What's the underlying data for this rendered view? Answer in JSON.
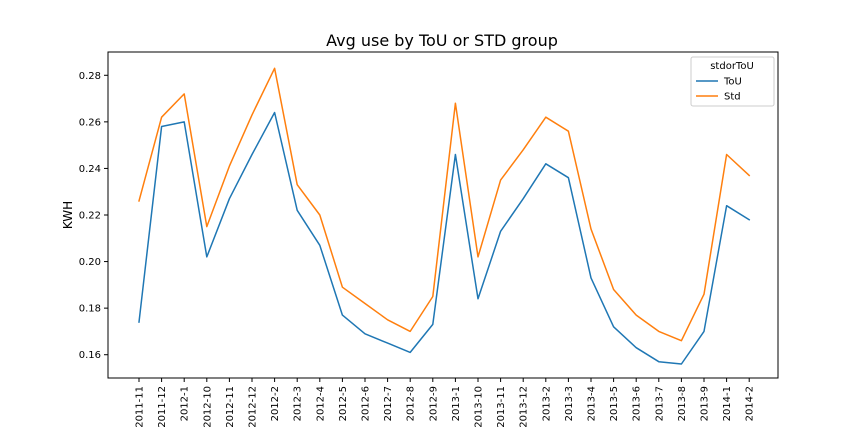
{
  "chart_data": {
    "type": "line",
    "title": "Avg use by ToU or STD group",
    "xlabel": "",
    "ylabel": "KWH",
    "ylim": [
      0.15,
      0.29
    ],
    "yticks": [
      0.16,
      0.18,
      0.2,
      0.22,
      0.24,
      0.26,
      0.28
    ],
    "ytick_labels": [
      "0.16",
      "0.18",
      "0.20",
      "0.22",
      "0.24",
      "0.26",
      "0.28"
    ],
    "grid": false,
    "legend": {
      "title": "stdorToU",
      "placement": "top-right"
    },
    "categories": [
      "2011-11",
      "2011-12",
      "2012-1",
      "2012-10",
      "2012-11",
      "2012-12",
      "2012-2",
      "2012-3",
      "2012-4",
      "2012-5",
      "2012-6",
      "2012-7",
      "2012-8",
      "2012-9",
      "2013-1",
      "2013-10",
      "2013-11",
      "2013-12",
      "2013-2",
      "2013-3",
      "2013-4",
      "2013-5",
      "2013-6",
      "2013-7",
      "2013-8",
      "2013-9",
      "2014-1",
      "2014-2"
    ],
    "series": [
      {
        "name": "ToU",
        "color": "#1f77b4",
        "values": [
          0.174,
          0.258,
          0.26,
          0.202,
          0.227,
          0.246,
          0.264,
          0.222,
          0.207,
          0.177,
          0.169,
          0.165,
          0.161,
          0.173,
          0.246,
          0.184,
          0.213,
          0.227,
          0.242,
          0.236,
          0.193,
          0.172,
          0.163,
          0.157,
          0.156,
          0.17,
          0.224,
          0.218
        ]
      },
      {
        "name": "Std",
        "color": "#ff7f0e",
        "values": [
          0.226,
          0.262,
          0.272,
          0.215,
          0.241,
          0.263,
          0.283,
          0.233,
          0.22,
          0.189,
          0.182,
          0.175,
          0.17,
          0.185,
          0.268,
          0.202,
          0.235,
          0.248,
          0.262,
          0.256,
          0.214,
          0.188,
          0.177,
          0.17,
          0.166,
          0.186,
          0.246,
          0.237
        ]
      }
    ]
  }
}
